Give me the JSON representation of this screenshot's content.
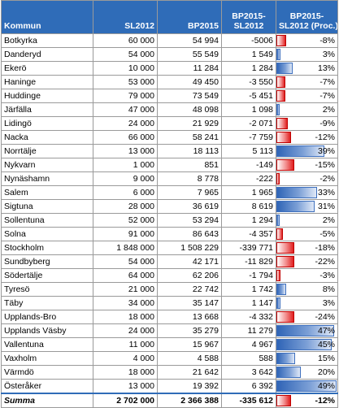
{
  "header": {
    "kommun": "Kommun",
    "sl2012": "SL2012",
    "bp2015": "BP2015",
    "diff_line1": "BP2015-",
    "diff_line2": "SL2012",
    "proc_line1": "BP2015-",
    "proc_line2": "SL2012 (Proc.)"
  },
  "rows": [
    {
      "kommun": "Botkyrka",
      "sl2012": "60 000",
      "bp2015": "54 994",
      "diff": "-5006",
      "proc": "-8%",
      "proc_value": -8
    },
    {
      "kommun": "Danderyd",
      "sl2012": "54 000",
      "bp2015": "55 549",
      "diff": "1 549",
      "proc": "3%",
      "proc_value": 3
    },
    {
      "kommun": "Ekerö",
      "sl2012": "10 000",
      "bp2015": "11 284",
      "diff": "1 284",
      "proc": "13%",
      "proc_value": 13
    },
    {
      "kommun": "Haninge",
      "sl2012": "53 000",
      "bp2015": "49 450",
      "diff": "-3 550",
      "proc": "-7%",
      "proc_value": -7
    },
    {
      "kommun": "Huddinge",
      "sl2012": "79 000",
      "bp2015": "73 549",
      "diff": "-5 451",
      "proc": "-7%",
      "proc_value": -7
    },
    {
      "kommun": "Järfälla",
      "sl2012": "47 000",
      "bp2015": "48 098",
      "diff": "1 098",
      "proc": "2%",
      "proc_value": 2
    },
    {
      "kommun": "Lidingö",
      "sl2012": "24 000",
      "bp2015": "21 929",
      "diff": "-2 071",
      "proc": "-9%",
      "proc_value": -9
    },
    {
      "kommun": "Nacka",
      "sl2012": "66 000",
      "bp2015": "58 241",
      "diff": "-7 759",
      "proc": "-12%",
      "proc_value": -12
    },
    {
      "kommun": "Norrtälje",
      "sl2012": "13 000",
      "bp2015": "18 113",
      "diff": "5 113",
      "proc": "39%",
      "proc_value": 39
    },
    {
      "kommun": "Nykvarn",
      "sl2012": "1 000",
      "bp2015": "851",
      "diff": "-149",
      "proc": "-15%",
      "proc_value": -15
    },
    {
      "kommun": "Nynäshamn",
      "sl2012": "9 000",
      "bp2015": "8 778",
      "diff": "-222",
      "proc": "-2%",
      "proc_value": -2
    },
    {
      "kommun": "Salem",
      "sl2012": "6 000",
      "bp2015": "7 965",
      "diff": "1 965",
      "proc": "33%",
      "proc_value": 33
    },
    {
      "kommun": "Sigtuna",
      "sl2012": "28 000",
      "bp2015": "36 619",
      "diff": "8 619",
      "proc": "31%",
      "proc_value": 31
    },
    {
      "kommun": "Sollentuna",
      "sl2012": "52 000",
      "bp2015": "53 294",
      "diff": "1 294",
      "proc": "2%",
      "proc_value": 2
    },
    {
      "kommun": "Solna",
      "sl2012": "91 000",
      "bp2015": "86 643",
      "diff": "-4 357",
      "proc": "-5%",
      "proc_value": -5
    },
    {
      "kommun": "Stockholm",
      "sl2012": "1 848 000",
      "bp2015": "1 508 229",
      "diff": "-339 771",
      "proc": "-18%",
      "proc_value": -18
    },
    {
      "kommun": "Sundbyberg",
      "sl2012": "54 000",
      "bp2015": "42 171",
      "diff": "-11 829",
      "proc": "-22%",
      "proc_value": -22
    },
    {
      "kommun": "Södertälje",
      "sl2012": "64 000",
      "bp2015": "62 206",
      "diff": "-1 794",
      "proc": "-3%",
      "proc_value": -3
    },
    {
      "kommun": "Tyresö",
      "sl2012": "21 000",
      "bp2015": "22 742",
      "diff": "1 742",
      "proc": "8%",
      "proc_value": 8
    },
    {
      "kommun": "Täby",
      "sl2012": "34 000",
      "bp2015": "35 147",
      "diff": "1 147",
      "proc": "3%",
      "proc_value": 3
    },
    {
      "kommun": "Upplands-Bro",
      "sl2012": "18 000",
      "bp2015": "13 668",
      "diff": "-4 332",
      "proc": "-24%",
      "proc_value": -24
    },
    {
      "kommun": "Upplands Väsby",
      "sl2012": "24 000",
      "bp2015": "35 279",
      "diff": "11 279",
      "proc": "47%",
      "proc_value": 47
    },
    {
      "kommun": "Vallentuna",
      "sl2012": "11 000",
      "bp2015": "15 967",
      "diff": "4 967",
      "proc": "45%",
      "proc_value": 45
    },
    {
      "kommun": "Vaxholm",
      "sl2012": "4 000",
      "bp2015": "4 588",
      "diff": "588",
      "proc": "15%",
      "proc_value": 15
    },
    {
      "kommun": "Värmdö",
      "sl2012": "18 000",
      "bp2015": "21 642",
      "diff": "3 642",
      "proc": "20%",
      "proc_value": 20
    },
    {
      "kommun": "Österåker",
      "sl2012": "13 000",
      "bp2015": "19 392",
      "diff": "6 392",
      "proc": "49%",
      "proc_value": 49
    }
  ],
  "summa": {
    "kommun": "Summa",
    "sl2012": "2 702 000",
    "bp2015": "2 366 388",
    "diff": "-335 612",
    "proc": "-12%",
    "proc_value": -12
  },
  "colors": {
    "header_bg": "#2f6cb8",
    "negative_bar": "#e01f1f",
    "positive_bar": "#2f64b6"
  }
}
